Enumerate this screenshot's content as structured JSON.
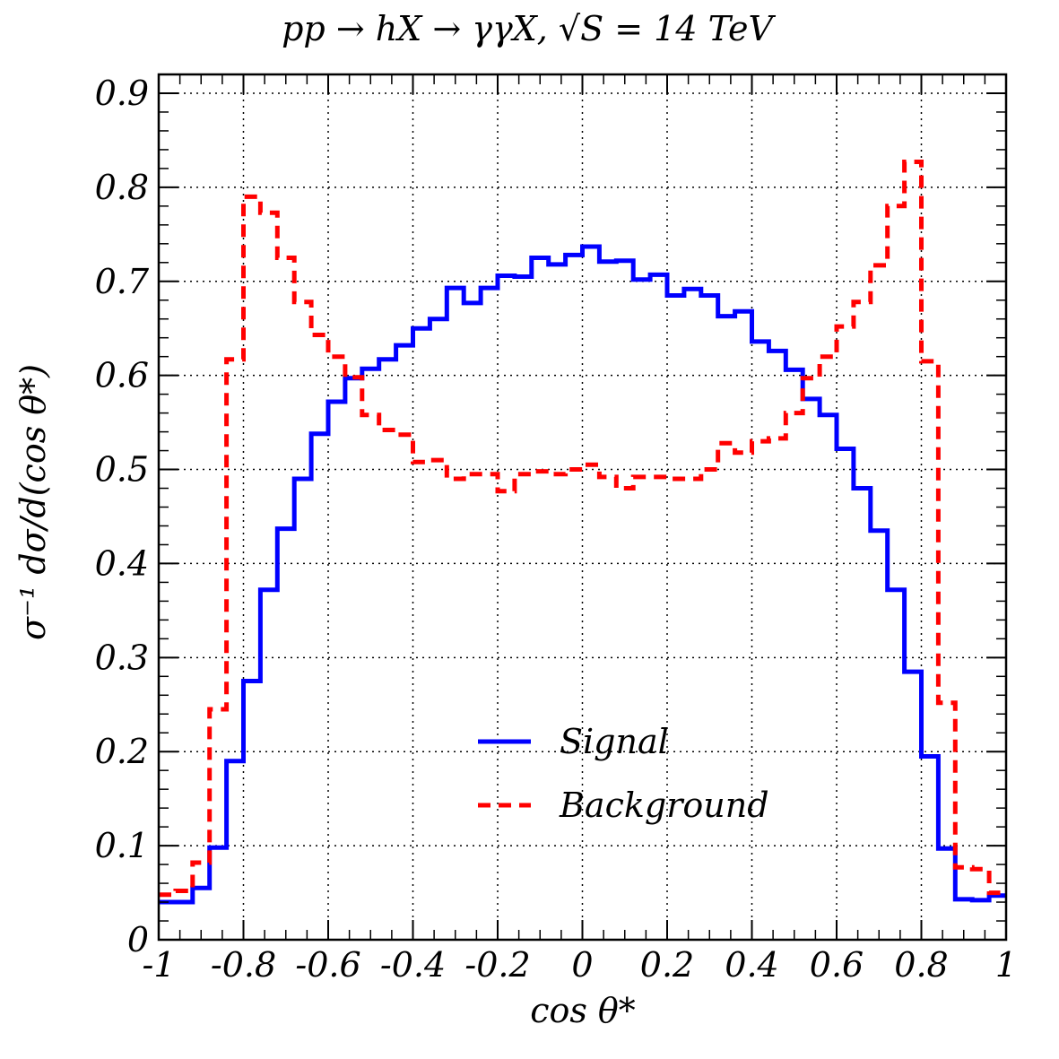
{
  "chart_data": {
    "type": "line",
    "title": "pp → hX → γγX, √S = 14 TeV",
    "xlabel": "cos θ*",
    "ylabel": "σ⁻¹ dσ/d(cos θ*)",
    "xlim": [
      -1,
      1
    ],
    "ylim": [
      0,
      0.92
    ],
    "grid": true,
    "legend_position": "bottom-center",
    "x_ticks": [
      "-1",
      "-0.8",
      "-0.6",
      "-0.4",
      "-0.2",
      "0",
      "0.2",
      "0.4",
      "0.6",
      "0.8",
      "1"
    ],
    "y_ticks": [
      "0",
      "0.1",
      "0.2",
      "0.3",
      "0.4",
      "0.5",
      "0.6",
      "0.7",
      "0.8",
      "0.9"
    ],
    "bin_edges": [
      -1.0,
      -0.96,
      -0.92,
      -0.88,
      -0.84,
      -0.8,
      -0.76,
      -0.72,
      -0.68,
      -0.64,
      -0.6,
      -0.56,
      -0.52,
      -0.48,
      -0.44,
      -0.4,
      -0.36,
      -0.32,
      -0.28,
      -0.24,
      -0.2,
      -0.16,
      -0.12,
      -0.08,
      -0.04,
      0.0,
      0.04,
      0.08,
      0.12,
      0.16,
      0.2,
      0.24,
      0.28,
      0.32,
      0.36,
      0.4,
      0.44,
      0.48,
      0.52,
      0.56,
      0.6,
      0.64,
      0.68,
      0.72,
      0.76,
      0.8,
      0.84,
      0.88,
      0.92,
      0.96,
      1.0
    ],
    "series": [
      {
        "name": "Signal",
        "color": "#0000ff",
        "style": "solid",
        "values": [
          0.04,
          0.04,
          0.055,
          0.098,
          0.19,
          0.275,
          0.372,
          0.437,
          0.49,
          0.538,
          0.572,
          0.597,
          0.607,
          0.617,
          0.632,
          0.65,
          0.66,
          0.693,
          0.677,
          0.693,
          0.706,
          0.705,
          0.725,
          0.718,
          0.728,
          0.737,
          0.721,
          0.722,
          0.702,
          0.707,
          0.685,
          0.692,
          0.685,
          0.663,
          0.668,
          0.636,
          0.626,
          0.606,
          0.575,
          0.558,
          0.522,
          0.48,
          0.435,
          0.372,
          0.285,
          0.195,
          0.097,
          0.043,
          0.042,
          0.047
        ]
      },
      {
        "name": "Background",
        "color": "#ff0000",
        "style": "dashed",
        "values": [
          0.048,
          0.052,
          0.082,
          0.245,
          0.617,
          0.79,
          0.773,
          0.725,
          0.678,
          0.643,
          0.62,
          0.598,
          0.558,
          0.542,
          0.537,
          0.508,
          0.51,
          0.49,
          0.495,
          0.495,
          0.477,
          0.495,
          0.498,
          0.495,
          0.5,
          0.505,
          0.492,
          0.48,
          0.492,
          0.492,
          0.49,
          0.49,
          0.5,
          0.528,
          0.518,
          0.53,
          0.533,
          0.56,
          0.597,
          0.62,
          0.652,
          0.678,
          0.717,
          0.78,
          0.827,
          0.615,
          0.252,
          0.077,
          0.075,
          0.05
        ]
      }
    ]
  }
}
